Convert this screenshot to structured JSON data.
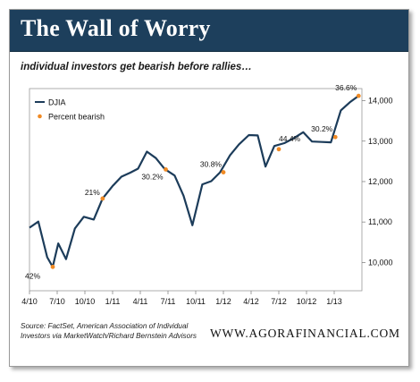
{
  "header": {
    "title": "The Wall of Worry"
  },
  "subtitle": "individual investors get bearish before rallies…",
  "source": "Source: FactSet, American Association of Individual Investors via MarketWatch/Richard Bernstein Advisors",
  "website": "WWW.AGORAFINANCIAL.COM",
  "colors": {
    "header_bg": "#1d3f5c",
    "line": "#1c3c5a",
    "marker": "#f08a24",
    "frame": "#9a9a9a"
  },
  "chart_data": {
    "type": "line",
    "title": "",
    "xlabel": "",
    "ylabel": "",
    "legend_position": "top-left",
    "xlim": [
      2010.25,
      2013.25
    ],
    "ylim": [
      9300,
      14300
    ],
    "x_ticks": [
      {
        "x": 2010.25,
        "label": "4/10"
      },
      {
        "x": 2010.5,
        "label": "7/10"
      },
      {
        "x": 2010.75,
        "label": "10/10"
      },
      {
        "x": 2011.0,
        "label": "1/11"
      },
      {
        "x": 2011.25,
        "label": "4/11"
      },
      {
        "x": 2011.5,
        "label": "7/11"
      },
      {
        "x": 2011.75,
        "label": "10/11"
      },
      {
        "x": 2012.0,
        "label": "1/12"
      },
      {
        "x": 2012.25,
        "label": "4/12"
      },
      {
        "x": 2012.5,
        "label": "7/12"
      },
      {
        "x": 2012.75,
        "label": "10/12"
      },
      {
        "x": 2013.0,
        "label": "1/13"
      }
    ],
    "y_ticks": [
      {
        "y": 10000,
        "label": "10,000"
      },
      {
        "y": 11000,
        "label": "11,000"
      },
      {
        "y": 12000,
        "label": "12,000"
      },
      {
        "y": 13000,
        "label": "13,000"
      },
      {
        "y": 14000,
        "label": "14,000"
      }
    ],
    "series": [
      {
        "name": "DJIA",
        "kind": "line",
        "x": [
          2010.25,
          2010.33,
          2010.41,
          2010.46,
          2010.51,
          2010.58,
          2010.66,
          2010.74,
          2010.83,
          2010.91,
          2011.0,
          2011.08,
          2011.16,
          2011.23,
          2011.31,
          2011.39,
          2011.47,
          2011.56,
          2011.64,
          2011.72,
          2011.81,
          2011.89,
          2011.97,
          2012.06,
          2012.14,
          2012.23,
          2012.31,
          2012.38,
          2012.46,
          2012.55,
          2012.64,
          2012.72,
          2012.8,
          2012.89,
          2012.97,
          2013.06,
          2013.14,
          2013.22
        ],
        "y": [
          10860,
          11010,
          10130,
          9890,
          10470,
          10080,
          10840,
          11130,
          11060,
          11580,
          11890,
          12120,
          12220,
          12320,
          12740,
          12580,
          12310,
          12150,
          11650,
          10920,
          11930,
          12010,
          12230,
          12650,
          12920,
          13150,
          13140,
          12370,
          12880,
          12950,
          13080,
          13220,
          12990,
          12980,
          12970,
          13760,
          13960,
          14120
        ]
      },
      {
        "name": "Percent bearish",
        "kind": "marker",
        "points": [
          {
            "x": 2010.46,
            "y": 9890,
            "label": "42%"
          },
          {
            "x": 2010.91,
            "y": 11580,
            "label": "21%"
          },
          {
            "x": 2011.48,
            "y": 12300,
            "label": "30.2%"
          },
          {
            "x": 2012.0,
            "y": 12230,
            "label": "30.8%"
          },
          {
            "x": 2012.5,
            "y": 12800,
            "label": "44.4%"
          },
          {
            "x": 2013.01,
            "y": 13100,
            "label": "30.2%"
          },
          {
            "x": 2013.22,
            "y": 14120,
            "label": "36.6%"
          }
        ]
      }
    ]
  }
}
